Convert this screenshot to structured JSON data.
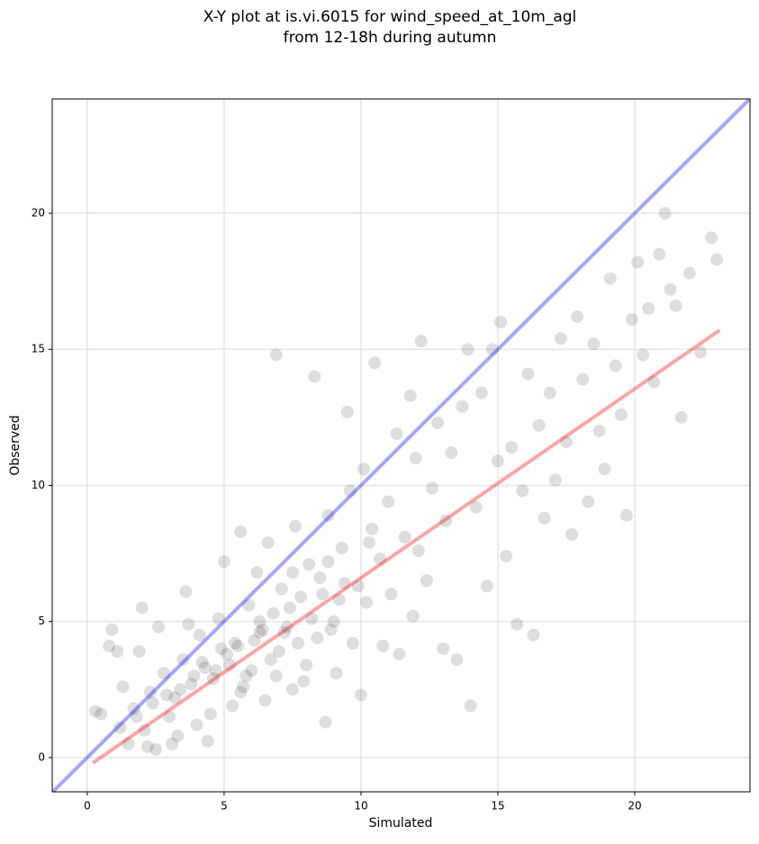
{
  "chart_data": {
    "type": "scatter",
    "title": [
      "X-Y plot at is.vi.6015 for wind_speed_at_10m_agl",
      "from 12-18h during autumn"
    ],
    "xlabel": "Simulated",
    "ylabel": "Observed",
    "xlim": [
      -1.28,
      24.21
    ],
    "ylim": [
      -1.26,
      24.2
    ],
    "xticks": [
      0,
      5,
      10,
      15,
      20
    ],
    "yticks": [
      0,
      5,
      10,
      15,
      20
    ],
    "grid": true,
    "series": [
      {
        "color": "#000000",
        "x": [
          0.3,
          0.5,
          0.9,
          0.8,
          1.1,
          1.3,
          1.5,
          1.7,
          1.9,
          2.0,
          2.1,
          2.3,
          2.5,
          2.6,
          2.8,
          3.0,
          3.2,
          3.3,
          3.5,
          3.6,
          3.8,
          4.0,
          4.1,
          4.3,
          4.4,
          4.6,
          4.8,
          5.0,
          5.1,
          5.3,
          5.4,
          5.6,
          5.7,
          5.9,
          6.0,
          6.2,
          6.3,
          6.5,
          6.6,
          6.8,
          6.9,
          7.0,
          7.1,
          7.3,
          7.5,
          7.6,
          7.8,
          8.0,
          8.1,
          8.3,
          8.4,
          8.5,
          8.7,
          8.8,
          9.0,
          9.1,
          9.3,
          9.5,
          9.6,
          9.7,
          9.9,
          10.0,
          10.1,
          10.2,
          10.4,
          10.5,
          10.7,
          10.8,
          11.0,
          11.1,
          11.3,
          11.4,
          11.6,
          11.8,
          11.9,
          12.0,
          12.1,
          12.2,
          12.4,
          12.6,
          12.8,
          13.0,
          13.1,
          13.3,
          13.5,
          13.7,
          13.9,
          14.0,
          14.2,
          14.4,
          14.6,
          14.8,
          15.0,
          15.1,
          15.3,
          15.5,
          15.7,
          15.9,
          16.1,
          16.3,
          16.5,
          16.7,
          16.9,
          17.1,
          17.3,
          17.5,
          17.7,
          17.9,
          18.1,
          18.3,
          18.5,
          18.7,
          18.9,
          19.1,
          19.3,
          19.5,
          19.7,
          19.9,
          20.1,
          20.3,
          20.5,
          20.7,
          20.9,
          21.1,
          21.3,
          21.5,
          21.7,
          22.0,
          22.4,
          22.8,
          23.0,
          1.2,
          1.8,
          2.4,
          2.9,
          3.4,
          3.9,
          4.2,
          4.7,
          5.2,
          5.5,
          5.8,
          6.1,
          6.4,
          6.7,
          7.2,
          7.4,
          7.7,
          8.2,
          8.6,
          8.9,
          9.2,
          9.4,
          2.2,
          3.1,
          4.5,
          5.6,
          6.9,
          7.9,
          3.7,
          4.9,
          6.3,
          7.5,
          8.8,
          10.3
        ],
        "values": [
          1.7,
          1.6,
          4.7,
          4.1,
          3.9,
          2.6,
          0.5,
          1.8,
          3.9,
          5.5,
          1.0,
          2.4,
          0.3,
          4.8,
          3.1,
          1.5,
          2.2,
          0.8,
          3.6,
          6.1,
          2.7,
          1.2,
          4.5,
          3.3,
          0.6,
          2.9,
          5.1,
          7.2,
          3.8,
          1.9,
          4.2,
          8.3,
          2.6,
          5.6,
          3.2,
          6.8,
          4.6,
          2.1,
          7.9,
          5.3,
          14.8,
          3.9,
          6.2,
          4.8,
          2.5,
          8.5,
          5.9,
          3.4,
          7.1,
          14.0,
          4.4,
          6.6,
          1.3,
          8.9,
          5.0,
          3.1,
          7.7,
          12.7,
          9.8,
          4.2,
          6.3,
          2.3,
          10.6,
          5.7,
          8.4,
          14.5,
          7.3,
          4.1,
          9.4,
          6.0,
          11.9,
          3.8,
          8.1,
          13.3,
          5.2,
          11.0,
          7.6,
          15.3,
          6.5,
          9.9,
          12.3,
          4.0,
          8.7,
          11.2,
          3.6,
          12.9,
          15.0,
          1.9,
          9.2,
          13.4,
          6.3,
          15.0,
          10.9,
          16.0,
          7.4,
          11.4,
          4.9,
          9.8,
          14.1,
          4.5,
          12.2,
          8.8,
          13.4,
          10.2,
          15.4,
          11.6,
          8.2,
          16.2,
          13.9,
          9.4,
          15.2,
          12.0,
          10.6,
          17.6,
          14.4,
          12.6,
          8.9,
          16.1,
          18.2,
          14.8,
          16.5,
          13.8,
          18.5,
          20.0,
          17.2,
          16.6,
          12.5,
          17.8,
          14.9,
          19.1,
          18.3,
          1.1,
          1.5,
          2.0,
          2.3,
          2.5,
          3.0,
          3.5,
          3.2,
          3.4,
          4.1,
          3.0,
          4.3,
          4.7,
          3.6,
          4.6,
          5.5,
          4.2,
          5.1,
          6.0,
          4.7,
          5.8,
          6.4,
          0.4,
          0.5,
          1.6,
          2.4,
          3.0,
          2.8,
          4.9,
          4.0,
          5.0,
          6.8,
          7.2,
          7.9
        ]
      }
    ],
    "reference_lines": [
      {
        "color": "#0000ee",
        "x": [
          -1.28,
          24.21
        ],
        "y": [
          -1.28,
          24.21
        ]
      },
      {
        "color": "#ee0000",
        "x": [
          0.2,
          23.1
        ],
        "y": [
          -0.2,
          15.7
        ]
      }
    ]
  }
}
